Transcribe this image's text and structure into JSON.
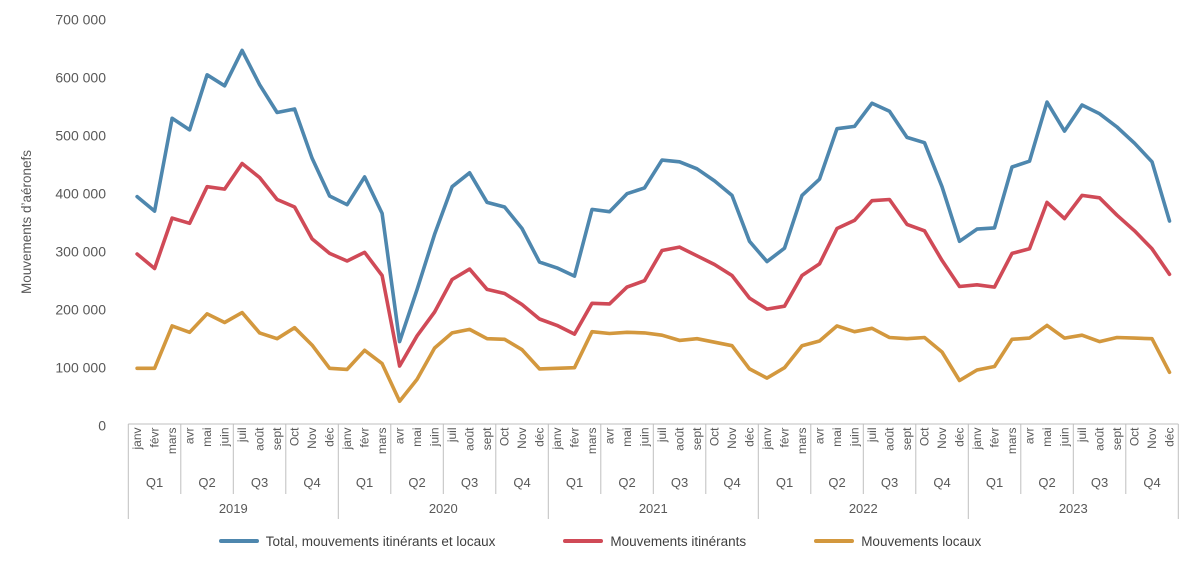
{
  "chart_data": {
    "type": "line",
    "title": "",
    "ylabel": "Mouvements d’aéronefs",
    "ylim": [
      0,
      700000
    ],
    "ytick_interval": 100000,
    "ytick_labels": [
      "0",
      "100 000",
      "200 000",
      "300 000",
      "400 000",
      "500 000",
      "600 000",
      "700 000"
    ],
    "x_months": [
      "janv",
      "févr",
      "mars",
      "avr",
      "mai",
      "juin",
      "juil",
      "août",
      "sept",
      "Oct",
      "Nov",
      "déc"
    ],
    "x_quarters": [
      "Q1",
      "Q2",
      "Q3",
      "Q4"
    ],
    "years": [
      "2019",
      "2020",
      "2021",
      "2022",
      "2023"
    ],
    "grid": false,
    "legend_position": "bottom",
    "axis_text_color": "#595959",
    "axis_line_color": "#BFBFBF",
    "series": [
      {
        "name": "Total, mouvements itinérants et locaux",
        "color": "#4E87AE",
        "values": [
          395000,
          370000,
          530000,
          510000,
          605000,
          586000,
          647000,
          588000,
          540000,
          546000,
          461000,
          396000,
          381000,
          429000,
          366000,
          145000,
          235000,
          330000,
          412000,
          436000,
          385000,
          377000,
          340000,
          282000,
          272000,
          258000,
          373000,
          369000,
          400000,
          410000,
          458000,
          455000,
          443000,
          422000,
          397000,
          318000,
          283000,
          306000,
          397000,
          425000,
          512000,
          516000,
          556000,
          542000,
          497000,
          488000,
          412000,
          318000,
          339000,
          341000,
          446000,
          456000,
          558000,
          508000,
          553000,
          538000,
          515000,
          487000,
          455000,
          353000
        ]
      },
      {
        "name": "Mouvements itinérants",
        "color": "#D04A57",
        "values": [
          296000,
          271000,
          358000,
          349000,
          412000,
          408000,
          452000,
          428000,
          390000,
          377000,
          322000,
          297000,
          284000,
          299000,
          259000,
          103000,
          155000,
          196000,
          252000,
          270000,
          235000,
          228000,
          209000,
          184000,
          173000,
          158000,
          211000,
          210000,
          239000,
          250000,
          302000,
          308000,
          293000,
          278000,
          259000,
          220000,
          201000,
          206000,
          259000,
          279000,
          340000,
          354000,
          388000,
          390000,
          347000,
          336000,
          285000,
          240000,
          243000,
          239000,
          297000,
          305000,
          385000,
          357000,
          397000,
          393000,
          363000,
          336000,
          305000,
          261000
        ]
      },
      {
        "name": "Mouvements locaux",
        "color": "#D3983E",
        "values": [
          99000,
          99000,
          172000,
          161000,
          193000,
          178000,
          195000,
          160000,
          150000,
          169000,
          139000,
          99000,
          97000,
          130000,
          107000,
          42000,
          80000,
          134000,
          160000,
          166000,
          150000,
          149000,
          131000,
          98000,
          99000,
          100000,
          162000,
          159000,
          161000,
          160000,
          156000,
          147000,
          150000,
          144000,
          138000,
          98000,
          82000,
          100000,
          138000,
          146000,
          172000,
          162000,
          168000,
          152000,
          150000,
          152000,
          127000,
          78000,
          96000,
          102000,
          149000,
          151000,
          173000,
          151000,
          156000,
          145000,
          152000,
          151000,
          150000,
          92000
        ]
      }
    ]
  }
}
